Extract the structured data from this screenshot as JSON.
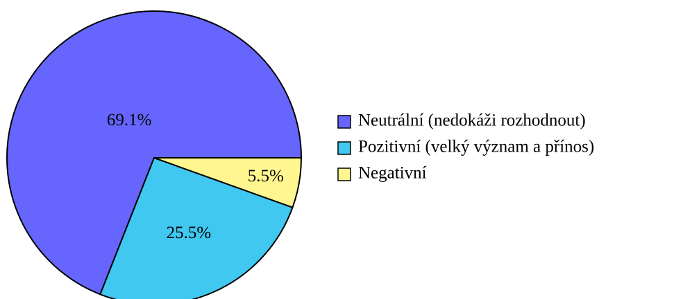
{
  "chart_data": {
    "type": "pie",
    "categories": [
      "Neutrální (nedokáži rozhodnout)",
      "Pozitivní (velký význam a přínos)",
      "Negativní"
    ],
    "values": [
      69.1,
      25.5,
      5.5
    ],
    "value_labels": [
      "69.1%",
      "25.5%",
      "5.5%"
    ],
    "colors": [
      "#6666ff",
      "#40c8f0",
      "#fff68f"
    ],
    "legend": "right"
  }
}
